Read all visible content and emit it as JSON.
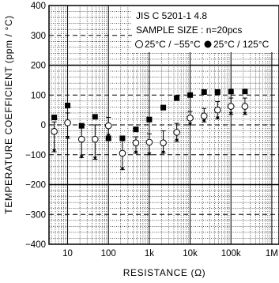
{
  "chart_data": {
    "type": "scatter",
    "title": "",
    "xlabel": "RESISTANCE (Ω)",
    "ylabel": "TEMPERATURE  COEFFICIENT (ppm / °C)",
    "x_scale": "log",
    "xlim": [
      3.5,
      1500000
    ],
    "ylim": [
      -400,
      400
    ],
    "x_ticks": [
      {
        "value": 10,
        "label": "10"
      },
      {
        "value": 100,
        "label": "100"
      },
      {
        "value": 1000,
        "label": "1k"
      },
      {
        "value": 10000,
        "label": "10k"
      },
      {
        "value": 100000,
        "label": "100k"
      },
      {
        "value": 1000000,
        "label": "1M"
      }
    ],
    "y_ticks": [
      {
        "value": 400,
        "label": "400"
      },
      {
        "value": 300,
        "label": "300"
      },
      {
        "value": 200,
        "label": "200"
      },
      {
        "value": 100,
        "label": "100"
      },
      {
        "value": 0,
        "label": "0"
      },
      {
        "value": -100,
        "label": "−100"
      },
      {
        "value": -200,
        "label": "−200"
      },
      {
        "value": -300,
        "label": "−300"
      },
      {
        "value": -400,
        "label": "−400"
      }
    ],
    "grid": true,
    "legend_position": "top-right",
    "annotation": {
      "lines": [
        "JIS C 5201-1 4.8",
        "SAMPLE SIZE : n=20pcs"
      ]
    },
    "series": [
      {
        "name": "25°C / −55°C",
        "marker": "open-circle",
        "x": [
          4.7,
          10,
          22,
          47,
          100,
          220,
          470,
          1000,
          2200,
          4700,
          10000,
          22000,
          47000,
          100000,
          220000
        ],
        "y": [
          -22,
          7,
          -48,
          -48,
          -3,
          -95,
          -60,
          -58,
          -60,
          -25,
          23,
          30,
          50,
          62,
          62
        ],
        "ymin": [
          -90,
          -45,
          -110,
          -115,
          -38,
          -150,
          -95,
          -100,
          -95,
          -55,
          0,
          10,
          20,
          35,
          35
        ],
        "ymax": [
          10,
          40,
          -10,
          0,
          25,
          -50,
          -40,
          -30,
          -20,
          5,
          45,
          55,
          78,
          90,
          90
        ]
      },
      {
        "name": "25°C / 125°C",
        "marker": "filled-square",
        "x": [
          4.7,
          10,
          22,
          47,
          100,
          220,
          470,
          1000,
          2200,
          4700,
          10000,
          22000,
          47000,
          100000,
          220000
        ],
        "y": [
          25,
          65,
          -3,
          27,
          -45,
          -45,
          -15,
          18,
          58,
          90,
          100,
          110,
          110,
          112,
          112
        ]
      }
    ]
  }
}
